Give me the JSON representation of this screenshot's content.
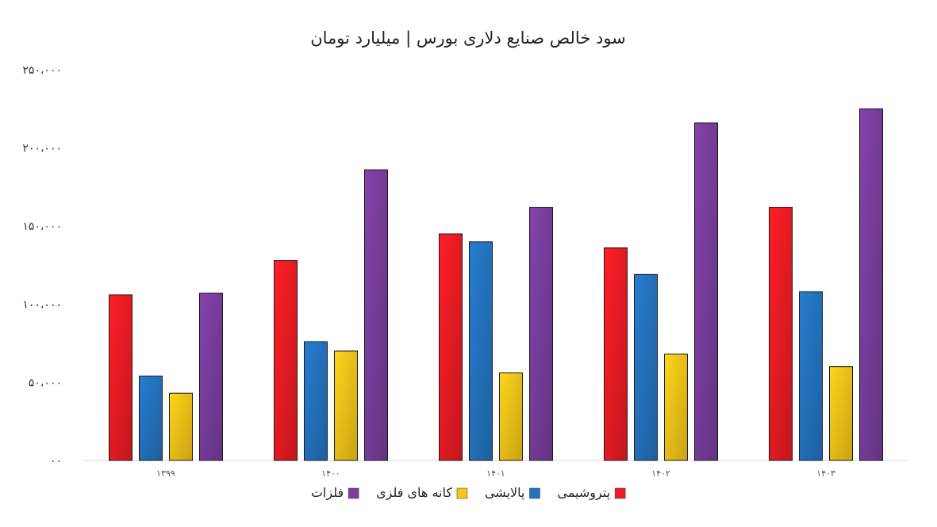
{
  "chart_data": {
    "type": "bar",
    "title": "سود خالص صنایع دلاری بورس | میلیارد تومان",
    "xlabel": "",
    "ylabel": "",
    "ylim": [
      0,
      250000
    ],
    "yticks": [
      0,
      50000,
      100000,
      150000,
      200000,
      250000
    ],
    "ytick_labels": [
      "۰۰",
      "۵۰،۰۰۰",
      "۱۰۰،۰۰۰",
      "۱۵۰،۰۰۰",
      "۲۰۰،۰۰۰",
      "۲۵۰،۰۰۰"
    ],
    "categories": [
      "۱۳۹۹",
      "۱۴۰۰",
      "۱۴۰۱",
      "۱۴۰۲",
      "۱۴۰۳"
    ],
    "grid": false,
    "legend_position": "bottom",
    "series": [
      {
        "name": "پتروشیمی",
        "color": "#ED1C24",
        "values": [
          106000,
          128000,
          145000,
          136000,
          162000
        ]
      },
      {
        "name": "پالایشی",
        "color": "#2474C1",
        "values": [
          54000,
          76000,
          140000,
          119000,
          108000
        ]
      },
      {
        "name": "کانه های فلزی",
        "color": "#F5C518",
        "values": [
          43000,
          70000,
          56000,
          68000,
          60000
        ]
      },
      {
        "name": "فلزات",
        "color": "#7A3E9E",
        "values": [
          107000,
          186000,
          162000,
          216000,
          225000
        ]
      }
    ]
  }
}
